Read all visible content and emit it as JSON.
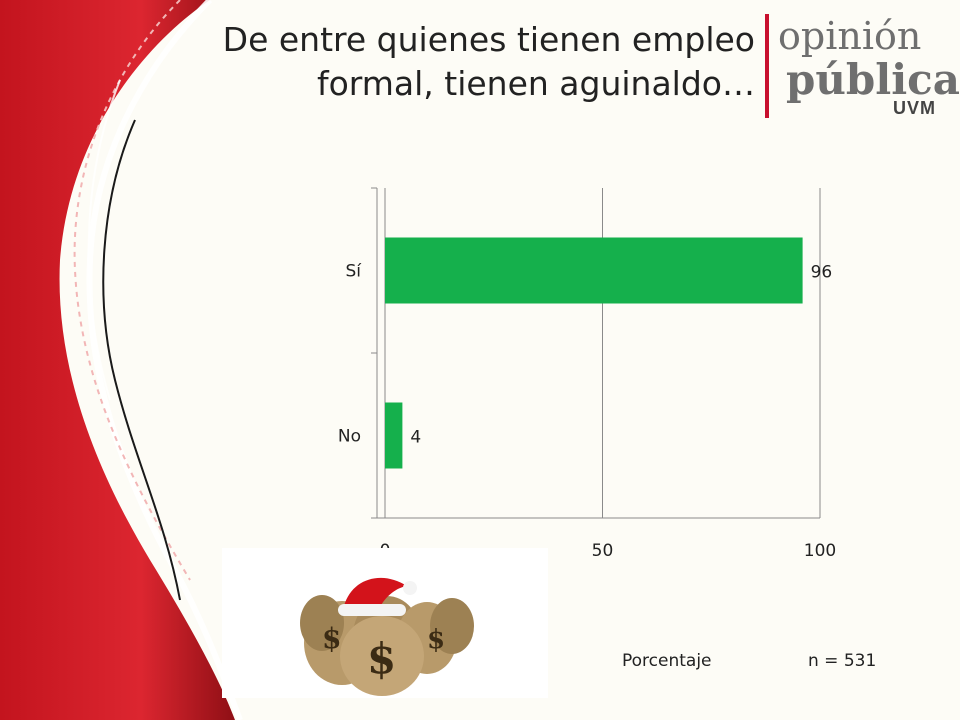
{
  "header": {
    "title_line1": "De entre quienes tienen empleo",
    "title_line2": "formal, tienen aguinaldo…"
  },
  "brand": {
    "word1": "opinión",
    "word2": "pública",
    "word3": "UVM",
    "accent": "#c8102e"
  },
  "chart_data": {
    "type": "bar",
    "orientation": "horizontal",
    "categories": [
      "Sí",
      "No"
    ],
    "values": [
      96,
      4
    ],
    "xlim": [
      0,
      100
    ],
    "x_ticks": [
      0,
      50,
      100
    ],
    "xlabel": "Porcentaje",
    "bar_color": "#15b04c",
    "grid": "vertical lines at ticks"
  },
  "footer": {
    "axis_label": "Porcentaje",
    "sample": "n = 531"
  },
  "image": {
    "icon": "money-bags-with-santa-hat-icon"
  },
  "colors": {
    "red": "#d0202a",
    "dark_red": "#9a1418",
    "background": "#fdfcf6"
  }
}
